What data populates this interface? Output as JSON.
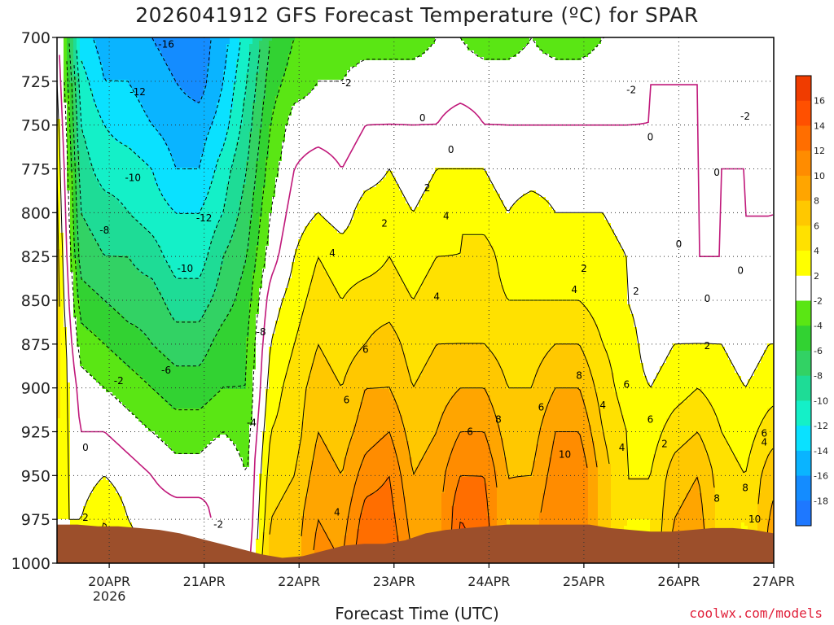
{
  "chart_data": {
    "type": "heatmap",
    "title": "2026041912 GFS Forecast Temperature (ºC) for SPAR",
    "xlabel": "Forecast Time (UTC)",
    "ylabel": "",
    "credit": "coolwx.com/models",
    "x_ticks": [
      {
        "label": "20APR",
        "sub": "2026",
        "day": 1
      },
      {
        "label": "21APR",
        "sub": "",
        "day": 2
      },
      {
        "label": "22APR",
        "sub": "",
        "day": 3
      },
      {
        "label": "23APR",
        "sub": "",
        "day": 4
      },
      {
        "label": "24APR",
        "sub": "",
        "day": 5
      },
      {
        "label": "25APR",
        "sub": "",
        "day": 6
      },
      {
        "label": "26APR",
        "sub": "",
        "day": 7
      },
      {
        "label": "27APR",
        "sub": "",
        "day": 8
      }
    ],
    "xlim": [
      0.45,
      8.0
    ],
    "y_levels_hpa": [
      700,
      725,
      750,
      775,
      800,
      825,
      850,
      875,
      900,
      925,
      950,
      975,
      1000
    ],
    "ylim": [
      700,
      1000
    ],
    "surface_pressure_hpa": [
      978,
      978,
      979,
      979,
      980,
      981,
      983,
      986,
      989,
      992,
      995,
      997,
      996,
      993,
      990,
      989,
      989,
      987,
      983,
      981,
      980,
      979,
      978,
      978,
      978,
      978,
      978,
      980,
      981,
      982,
      982,
      981,
      980,
      980,
      981,
      983
    ],
    "temperature_grid": {
      "time_step_h": 6,
      "levels_hpa": [
        700,
        725,
        750,
        775,
        800,
        825,
        850,
        875,
        900,
        925,
        950,
        975,
        1000
      ],
      "rows_by_time": [
        [
          1,
          2,
          3,
          4,
          4,
          5,
          5,
          5,
          5,
          4,
          3,
          2,
          1
        ],
        [
          -13,
          -11,
          -10,
          -9,
          -8,
          -7,
          -5,
          -3,
          -1,
          0,
          1,
          2,
          3
        ],
        [
          -15,
          -14,
          -12,
          -11,
          -9,
          -8,
          -6,
          -4,
          -2,
          0,
          2,
          4,
          5
        ],
        [
          -15,
          -14,
          -13,
          -11,
          -10,
          -8,
          -7,
          -5,
          -3,
          -1,
          1,
          2,
          3
        ],
        [
          -16,
          -15,
          -14,
          -12,
          -11,
          -9,
          -7,
          -6,
          -4,
          -2,
          0,
          1,
          2
        ],
        [
          -17,
          -16,
          -15,
          -14,
          -12,
          -11,
          -9,
          -7,
          -5,
          -3,
          -1,
          1,
          3
        ],
        [
          -17,
          -17,
          -15,
          -14,
          -12,
          -11,
          -9,
          -7,
          -5,
          -3,
          -1,
          1,
          2
        ],
        [
          -15,
          -14,
          -13,
          -11,
          -10,
          -8,
          -7,
          -5,
          -4,
          -2,
          0,
          -1,
          -2
        ],
        [
          -11,
          -10,
          -9,
          -8,
          -7,
          -6,
          -5,
          -4,
          -4,
          -3,
          -2,
          -2,
          -1
        ],
        [
          -6,
          -5,
          -4,
          -3,
          -2,
          -1,
          1,
          2,
          3,
          4,
          5,
          6,
          7
        ],
        [
          -4,
          -3,
          -1,
          0,
          1,
          2,
          3,
          4,
          5,
          5,
          6,
          7,
          7
        ],
        [
          -3,
          -2,
          -1,
          1,
          2,
          4,
          5,
          6,
          7,
          8,
          9,
          10,
          11
        ],
        [
          -3,
          -2,
          -1,
          0,
          1,
          3,
          4,
          5,
          6,
          7,
          8,
          9,
          10
        ],
        [
          -3,
          -1,
          0,
          1,
          3,
          3,
          5,
          6,
          8,
          9,
          11,
          13,
          14
        ],
        [
          -3,
          -1,
          0,
          2,
          3,
          4,
          5,
          7,
          8,
          10,
          12,
          13,
          14
        ],
        [
          -3,
          -1,
          0,
          1,
          2,
          3,
          4,
          5,
          6,
          7,
          8,
          9,
          10
        ],
        [
          -2,
          -1,
          0,
          2,
          3,
          4,
          5,
          6,
          7,
          8,
          9,
          9,
          8
        ],
        [
          -2,
          -1,
          1,
          2,
          4,
          4,
          5,
          6,
          8,
          10,
          12,
          14,
          15
        ],
        [
          -3,
          -1,
          0,
          2,
          3,
          5,
          5,
          6,
          8,
          10,
          12,
          13,
          14
        ],
        [
          -3,
          -1,
          0,
          1,
          2,
          3,
          4,
          5,
          6,
          7,
          8,
          8,
          7
        ],
        [
          -2,
          -1,
          0,
          1,
          3,
          3,
          4,
          5,
          6,
          7,
          8,
          9,
          8
        ],
        [
          -3,
          -1,
          0,
          1,
          2,
          3,
          4,
          6,
          8,
          10,
          11,
          12,
          12
        ],
        [
          -3,
          -1,
          0,
          1,
          2,
          3,
          4,
          6,
          8,
          10,
          12,
          12,
          11
        ],
        [
          -2,
          -1,
          0,
          1,
          2,
          3,
          3,
          4,
          5,
          6,
          7,
          7,
          6
        ],
        [
          -2,
          -1,
          0,
          1,
          1,
          2,
          2,
          3,
          3,
          4,
          4,
          4,
          3
        ],
        [
          -1,
          0,
          0,
          1,
          1,
          1,
          1,
          1,
          2,
          3,
          4,
          4,
          4
        ],
        [
          -1,
          0,
          0,
          0,
          0,
          1,
          1,
          2,
          3,
          5,
          7,
          8,
          9
        ],
        [
          -1,
          0,
          0,
          -1,
          -1,
          0,
          1,
          2,
          4,
          6,
          8,
          9,
          10
        ],
        [
          -1,
          -1,
          0,
          0,
          -1,
          0,
          1,
          2,
          3,
          4,
          5,
          5,
          4
        ],
        [
          -1,
          -1,
          -1,
          0,
          0,
          0,
          0,
          1,
          2,
          3,
          4,
          4,
          3
        ],
        [
          -1,
          -1,
          -1,
          -1,
          0,
          0,
          1,
          2,
          3,
          5,
          7,
          8,
          9
        ],
        [
          -1,
          -1,
          -1,
          -1,
          0,
          1,
          1,
          2,
          4,
          6,
          9,
          11,
          12
        ],
        [
          -1,
          -1,
          -2,
          -1,
          0,
          1,
          2,
          3,
          4,
          6,
          8,
          10,
          12
        ],
        [
          -1,
          -1,
          0,
          0,
          1,
          2,
          2,
          3,
          4,
          5,
          7,
          9,
          11
        ]
      ]
    },
    "fill_levels": [
      -20,
      -18,
      -16,
      -14,
      -12,
      -10,
      -8,
      -6,
      -4,
      -2,
      2,
      4,
      6,
      8,
      10,
      12,
      14,
      16,
      18
    ],
    "fill_colors": [
      "#1e78ff",
      "#148cff",
      "#0ab4ff",
      "#0ae1ff",
      "#14f0c8",
      "#1edc96",
      "#32d264",
      "#32d232",
      "#5ae614",
      "#ffffff",
      "#ffff00",
      "#ffe100",
      "#ffc800",
      "#ffa500",
      "#ff8c00",
      "#ff6e00",
      "#ff5000",
      "#f03c00"
    ],
    "colorbar_tick_labels": [
      "16",
      "14",
      "12",
      "10",
      "8",
      "6",
      "4",
      "2",
      "-2",
      "-4",
      "-6",
      "-8",
      "-10",
      "-12",
      "-14",
      "-16",
      "-18"
    ],
    "contour_labels": [
      {
        "text": "-16",
        "day": 1.6,
        "hpa": 704
      },
      {
        "text": "-12",
        "day": 1.3,
        "hpa": 731
      },
      {
        "text": "-10",
        "day": 1.25,
        "hpa": 780
      },
      {
        "text": "-12",
        "day": 2.0,
        "hpa": 803
      },
      {
        "text": "-8",
        "day": 0.95,
        "hpa": 810
      },
      {
        "text": "-10",
        "day": 1.8,
        "hpa": 832
      },
      {
        "text": "-8",
        "day": 2.6,
        "hpa": 868
      },
      {
        "text": "-6",
        "day": 1.6,
        "hpa": 890
      },
      {
        "text": "-4",
        "day": 2.5,
        "hpa": 920
      },
      {
        "text": "-2",
        "day": 1.1,
        "hpa": 896
      },
      {
        "text": "-2",
        "day": 2.15,
        "hpa": 978
      },
      {
        "text": "-2",
        "day": 3.5,
        "hpa": 726
      },
      {
        "text": "-2",
        "day": 6.5,
        "hpa": 730
      },
      {
        "text": "-2",
        "day": 7.7,
        "hpa": 745
      },
      {
        "text": "0",
        "day": 0.75,
        "hpa": 934
      },
      {
        "text": "0",
        "day": 4.3,
        "hpa": 746
      },
      {
        "text": "0",
        "day": 4.6,
        "hpa": 764
      },
      {
        "text": "0",
        "day": 6.7,
        "hpa": 757
      },
      {
        "text": "0",
        "day": 7.4,
        "hpa": 777
      },
      {
        "text": "0",
        "day": 7.0,
        "hpa": 818
      },
      {
        "text": "0",
        "day": 7.3,
        "hpa": 849
      },
      {
        "text": "0",
        "day": 7.65,
        "hpa": 833
      },
      {
        "text": "2",
        "day": 0.75,
        "hpa": 974
      },
      {
        "text": "2",
        "day": 4.35,
        "hpa": 786
      },
      {
        "text": "2",
        "day": 3.9,
        "hpa": 806
      },
      {
        "text": "2",
        "day": 6.0,
        "hpa": 832
      },
      {
        "text": "2",
        "day": 6.55,
        "hpa": 845
      },
      {
        "text": "2",
        "day": 6.85,
        "hpa": 932
      },
      {
        "text": "2",
        "day": 7.3,
        "hpa": 876
      },
      {
        "text": "4",
        "day": 3.35,
        "hpa": 823
      },
      {
        "text": "4",
        "day": 4.55,
        "hpa": 802
      },
      {
        "text": "4",
        "day": 4.45,
        "hpa": 848
      },
      {
        "text": "4",
        "day": 5.9,
        "hpa": 844
      },
      {
        "text": "4",
        "day": 3.4,
        "hpa": 971
      },
      {
        "text": "4",
        "day": 6.2,
        "hpa": 910
      },
      {
        "text": "4",
        "day": 6.4,
        "hpa": 934
      },
      {
        "text": "4",
        "day": 7.9,
        "hpa": 931
      },
      {
        "text": "6",
        "day": 3.7,
        "hpa": 878
      },
      {
        "text": "6",
        "day": 3.5,
        "hpa": 907
      },
      {
        "text": "6",
        "day": 4.8,
        "hpa": 925
      },
      {
        "text": "6",
        "day": 5.55,
        "hpa": 911
      },
      {
        "text": "6",
        "day": 6.7,
        "hpa": 918
      },
      {
        "text": "6",
        "day": 6.45,
        "hpa": 898
      },
      {
        "text": "6",
        "day": 7.9,
        "hpa": 926
      },
      {
        "text": "8",
        "day": 5.1,
        "hpa": 918
      },
      {
        "text": "8",
        "day": 5.95,
        "hpa": 893
      },
      {
        "text": "8",
        "day": 7.7,
        "hpa": 957
      },
      {
        "text": "8",
        "day": 7.4,
        "hpa": 963
      },
      {
        "text": "10",
        "day": 5.8,
        "hpa": 938
      },
      {
        "text": "10",
        "day": 7.8,
        "hpa": 975
      }
    ],
    "colorscale": "temperature",
    "legend": "right"
  }
}
